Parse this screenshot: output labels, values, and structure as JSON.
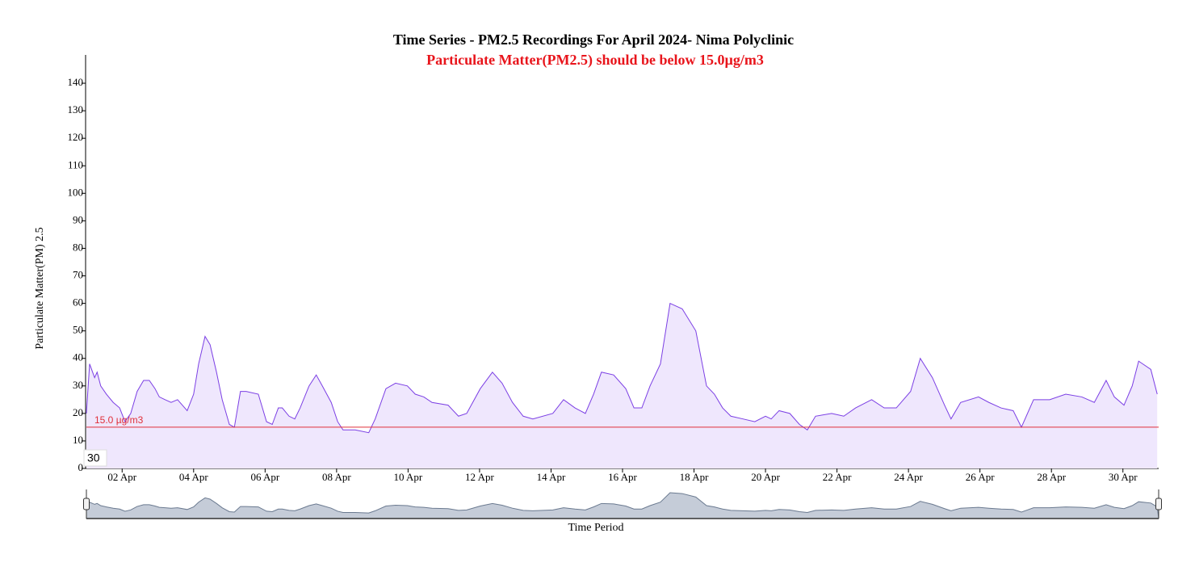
{
  "chart_data": {
    "type": "area",
    "title": "Time Series - PM2.5 Recordings For April 2024- Nima Polyclinic",
    "subtitle": "Particulate Matter(PM2.5) should be below 15.0µg/m3",
    "x_label": "Time Period",
    "y_label": "Particulate Matter(PM) 2.5",
    "badge": "30",
    "threshold": {
      "value": 15,
      "label": "15.0 µg/m3",
      "color": "#e0303a"
    },
    "x": [
      1.0,
      1.09,
      1.23,
      1.3,
      1.4,
      1.56,
      1.75,
      1.93,
      2.08,
      2.24,
      2.42,
      2.6,
      2.76,
      2.92,
      3.04,
      3.2,
      3.37,
      3.55,
      3.82,
      4.0,
      4.14,
      4.32,
      4.46,
      4.64,
      4.8,
      5.0,
      5.14,
      5.31,
      5.47,
      5.81,
      6.04,
      6.2,
      6.37,
      6.48,
      6.67,
      6.83,
      6.98,
      7.23,
      7.43,
      7.6,
      7.85,
      8.03,
      8.18,
      8.52,
      8.9,
      9.08,
      9.38,
      9.65,
      9.98,
      10.2,
      10.44,
      10.67,
      11.12,
      11.41,
      11.64,
      12.02,
      12.36,
      12.63,
      12.92,
      13.22,
      13.49,
      14.05,
      14.35,
      14.67,
      14.96,
      15.19,
      15.41,
      15.75,
      16.09,
      16.32,
      16.54,
      16.77,
      17.06,
      17.33,
      17.67,
      18.05,
      18.35,
      18.57,
      18.8,
      19.03,
      19.37,
      19.7,
      20.0,
      20.16,
      20.38,
      20.68,
      20.95,
      21.17,
      21.4,
      21.85,
      22.19,
      22.52,
      22.97,
      23.32,
      23.66,
      24.06,
      24.33,
      24.67,
      25.01,
      25.19,
      25.46,
      25.96,
      26.25,
      26.59,
      26.93,
      27.16,
      27.5,
      27.95,
      28.4,
      28.85,
      29.2,
      29.53,
      29.76,
      30.03,
      30.26,
      30.44,
      30.78,
      30.96
    ],
    "series": [
      {
        "name": "PM2.5",
        "color": "#7b3fe4",
        "fill": "#efe7fd",
        "values": [
          20,
          38,
          33,
          35,
          30,
          27,
          24,
          22,
          17,
          20,
          28,
          32,
          32,
          29,
          26,
          25,
          24,
          25,
          21,
          27,
          38,
          48,
          45,
          35,
          25,
          16,
          15,
          28,
          28,
          27,
          17,
          16,
          22,
          22,
          19,
          18,
          22,
          30,
          34,
          30,
          24,
          17,
          14,
          14,
          13,
          18,
          29,
          31,
          30,
          27,
          26,
          24,
          23,
          19,
          20,
          29,
          35,
          31,
          24,
          19,
          18,
          20,
          25,
          22,
          20,
          27,
          35,
          34,
          29,
          22,
          22,
          30,
          38,
          60,
          58,
          50,
          30,
          27,
          22,
          19,
          18,
          17,
          19,
          18,
          21,
          20,
          16,
          14,
          19,
          20,
          19,
          22,
          25,
          22,
          22,
          28,
          40,
          33,
          23,
          18,
          24,
          26,
          24,
          22,
          21,
          15,
          25,
          25,
          27,
          26,
          24,
          32,
          26,
          23,
          30,
          39,
          36,
          27
        ]
      }
    ],
    "xlim": [
      1,
      31
    ],
    "xticks": [
      {
        "value": 2,
        "label": "02 Apr"
      },
      {
        "value": 4,
        "label": "04 Apr"
      },
      {
        "value": 6,
        "label": "06 Apr"
      },
      {
        "value": 8,
        "label": "08 Apr"
      },
      {
        "value": 10,
        "label": "10 Apr"
      },
      {
        "value": 12,
        "label": "12 Apr"
      },
      {
        "value": 14,
        "label": "14 Apr"
      },
      {
        "value": 16,
        "label": "16 Apr"
      },
      {
        "value": 18,
        "label": "18 Apr"
      },
      {
        "value": 20,
        "label": "20 Apr"
      },
      {
        "value": 22,
        "label": "22 Apr"
      },
      {
        "value": 24,
        "label": "24 Apr"
      },
      {
        "value": 26,
        "label": "26 Apr"
      },
      {
        "value": 28,
        "label": "28 Apr"
      },
      {
        "value": 30,
        "label": "30 Apr"
      }
    ],
    "ylim": [
      0,
      150
    ],
    "yticks": [
      0,
      10,
      20,
      30,
      40,
      50,
      60,
      70,
      80,
      90,
      100,
      110,
      120,
      130,
      140
    ]
  }
}
